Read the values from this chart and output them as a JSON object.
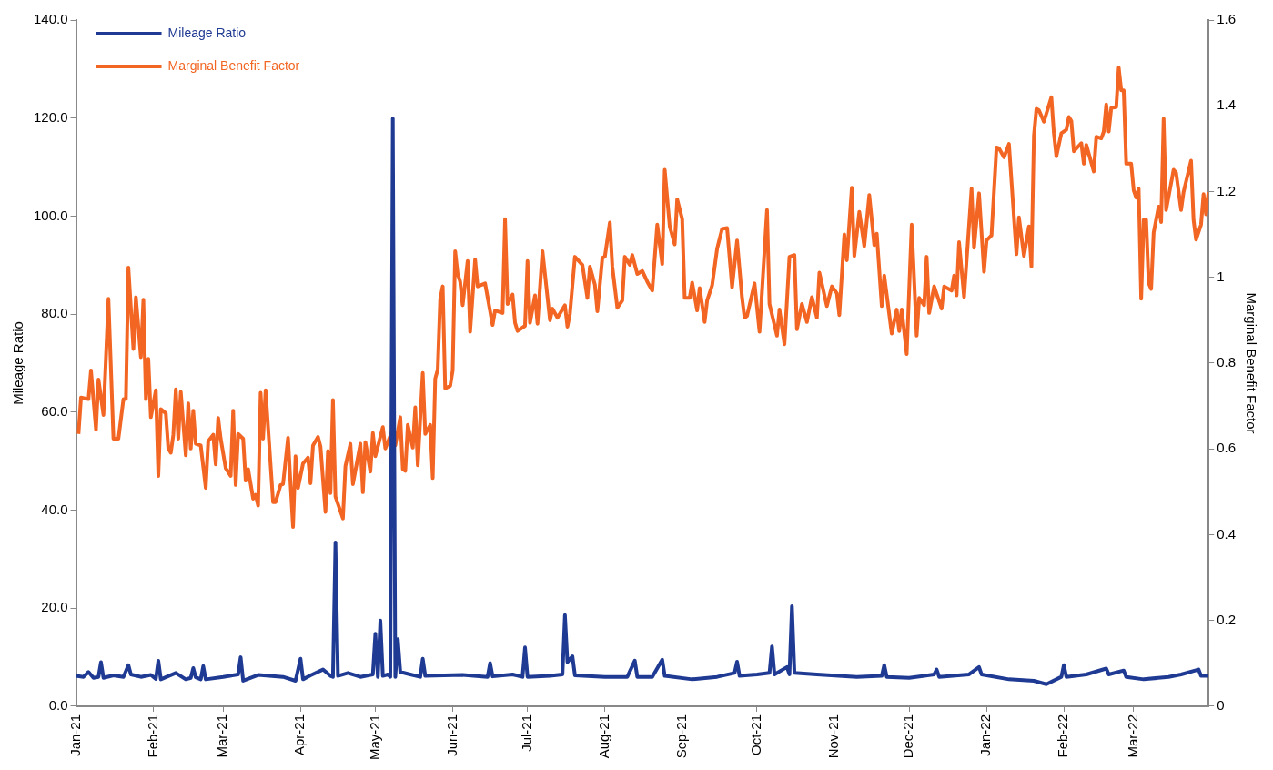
{
  "chart_data": {
    "type": "line",
    "ylabel": "Mileage Ratio",
    "y2label": "Marginal Benefit Factor",
    "legend": "top left",
    "grid": false,
    "marker": "none",
    "line_style": "solid",
    "xlim": [
      "2021-01-01",
      "2022-03-31"
    ],
    "xticks": [
      {
        "value": "2021-01-01",
        "label": "Jan-21"
      },
      {
        "value": "2021-02-01",
        "label": "Feb-21"
      },
      {
        "value": "2021-03-01",
        "label": "Mar-21"
      },
      {
        "value": "2021-04-01",
        "label": "Apr-21"
      },
      {
        "value": "2021-05-01",
        "label": "May-21"
      },
      {
        "value": "2021-06-01",
        "label": "Jun-21"
      },
      {
        "value": "2021-07-01",
        "label": "Jul-21"
      },
      {
        "value": "2021-08-01",
        "label": "Aug-21"
      },
      {
        "value": "2021-09-01",
        "label": "Sep-21"
      },
      {
        "value": "2021-10-01",
        "label": "Oct-21"
      },
      {
        "value": "2021-11-01",
        "label": "Nov-21"
      },
      {
        "value": "2021-12-01",
        "label": "Dec-21"
      },
      {
        "value": "2022-01-01",
        "label": "Jan-22"
      },
      {
        "value": "2022-02-01",
        "label": "Feb-22"
      },
      {
        "value": "2022-03-01",
        "label": "Mar-22"
      }
    ],
    "ylim": [
      0,
      140
    ],
    "yticks": [
      {
        "value": 0,
        "label": "0.0"
      },
      {
        "value": 20,
        "label": "20.0"
      },
      {
        "value": 40,
        "label": "40.0"
      },
      {
        "value": 60,
        "label": "60.0"
      },
      {
        "value": 80,
        "label": "80.0"
      },
      {
        "value": 100,
        "label": "100.0"
      },
      {
        "value": 120,
        "label": "120.0"
      },
      {
        "value": 140,
        "label": "140.0"
      }
    ],
    "y2lim": [
      0,
      1.6
    ],
    "y2ticks": [
      0,
      0.2,
      0.4,
      0.6,
      0.8,
      1,
      1.2,
      1.4,
      1.6
    ],
    "series": [
      {
        "name": "Mileage Ratio",
        "color": "#1f3a93",
        "x": [
          "2021-01-01",
          "2021-01-04",
          "2021-01-06",
          "2021-01-08",
          "2021-01-10",
          "2021-01-11",
          "2021-01-12",
          "2021-01-16",
          "2021-01-20",
          "2021-01-22",
          "2021-01-23",
          "2021-01-27",
          "2021-01-31",
          "2021-02-02",
          "2021-02-03",
          "2021-02-04",
          "2021-02-10",
          "2021-02-14",
          "2021-02-16",
          "2021-02-17",
          "2021-02-18",
          "2021-02-20",
          "2021-02-21",
          "2021-02-22",
          "2021-03-01",
          "2021-03-07",
          "2021-03-08",
          "2021-03-09",
          "2021-03-15",
          "2021-03-25",
          "2021-03-30",
          "2021-04-01",
          "2021-04-02",
          "2021-04-05",
          "2021-04-10",
          "2021-04-13",
          "2021-04-14",
          "2021-04-15",
          "2021-04-16",
          "2021-04-20",
          "2021-04-25",
          "2021-04-30",
          "2021-05-01",
          "2021-05-02",
          "2021-05-03",
          "2021-05-04",
          "2021-05-06",
          "2021-05-07",
          "2021-05-08",
          "2021-05-09",
          "2021-05-10",
          "2021-05-11",
          "2021-05-15",
          "2021-05-19",
          "2021-05-20",
          "2021-05-21",
          "2021-06-05",
          "2021-06-15",
          "2021-06-16",
          "2021-06-17",
          "2021-06-25",
          "2021-06-29",
          "2021-06-30",
          "2021-07-01",
          "2021-07-10",
          "2021-07-15",
          "2021-07-16",
          "2021-07-17",
          "2021-07-19",
          "2021-07-20",
          "2021-08-01",
          "2021-08-10",
          "2021-08-13",
          "2021-08-14",
          "2021-08-20",
          "2021-08-24",
          "2021-08-25",
          "2021-09-05",
          "2021-09-15",
          "2021-09-22",
          "2021-09-23",
          "2021-09-24",
          "2021-10-01",
          "2021-10-06",
          "2021-10-07",
          "2021-10-08",
          "2021-10-13",
          "2021-10-14",
          "2021-10-15",
          "2021-10-16",
          "2021-10-25",
          "2021-11-10",
          "2021-11-20",
          "2021-11-21",
          "2021-11-22",
          "2021-12-01",
          "2021-12-11",
          "2021-12-12",
          "2021-12-13",
          "2021-12-25",
          "2021-12-29",
          "2021-12-30",
          "2022-01-10",
          "2022-01-20",
          "2022-01-25",
          "2022-01-31",
          "2022-02-01",
          "2022-02-02",
          "2022-02-10",
          "2022-02-18",
          "2022-02-19",
          "2022-02-25",
          "2022-02-26",
          "2022-03-05",
          "2022-03-15",
          "2022-03-20",
          "2022-03-27",
          "2022-03-28",
          "2022-03-31"
        ],
        "values": [
          6.2,
          6.0,
          7.0,
          5.8,
          6.0,
          9.0,
          5.8,
          6.3,
          6.0,
          8.4,
          6.5,
          6.0,
          6.4,
          5.6,
          9.3,
          5.5,
          6.8,
          5.5,
          5.8,
          7.8,
          5.9,
          5.5,
          8.2,
          5.5,
          6.0,
          6.5,
          10.0,
          5.2,
          6.4,
          6.0,
          5.2,
          9.7,
          5.5,
          6.3,
          7.5,
          6.2,
          6.0,
          33.4,
          6.2,
          6.8,
          6.0,
          6.5,
          14.8,
          6.0,
          17.5,
          6.2,
          6.5,
          6.0,
          119.9,
          6.0,
          13.7,
          7.0,
          6.5,
          6.0,
          9.7,
          6.2,
          6.4,
          6.0,
          8.8,
          6.1,
          6.5,
          6.0,
          12.0,
          6.0,
          6.2,
          6.5,
          18.6,
          9.0,
          10.2,
          6.3,
          6.0,
          6.0,
          9.3,
          6.0,
          6.0,
          9.5,
          6.2,
          5.5,
          6.0,
          6.8,
          9.1,
          6.2,
          6.5,
          6.8,
          12.2,
          6.5,
          8.0,
          6.5,
          20.4,
          6.8,
          6.5,
          6.0,
          6.2,
          8.4,
          6.0,
          5.8,
          6.5,
          7.5,
          6.0,
          6.5,
          8.0,
          6.5,
          5.5,
          5.2,
          4.5,
          6.0,
          8.4,
          6.0,
          6.5,
          7.7,
          6.5,
          7.3,
          6.0,
          5.5,
          6.0,
          6.5,
          7.5,
          6.2,
          6.2
        ]
      },
      {
        "name": "Marginal Benefit Factor",
        "color": "#f26522",
        "axis": "y2",
        "x": [
          "2021-01-02",
          "2021-01-03",
          "2021-01-06",
          "2021-01-07",
          "2021-01-09",
          "2021-01-10",
          "2021-01-12",
          "2021-01-14",
          "2021-01-16",
          "2021-01-18",
          "2021-01-20",
          "2021-01-21",
          "2021-01-22",
          "2021-01-24",
          "2021-01-25",
          "2021-01-27",
          "2021-01-28",
          "2021-01-29",
          "2021-01-30",
          "2021-01-31",
          "2021-02-02",
          "2021-02-03",
          "2021-02-04",
          "2021-02-06",
          "2021-02-07",
          "2021-02-08",
          "2021-02-09",
          "2021-02-10",
          "2021-02-11",
          "2021-02-12",
          "2021-02-14",
          "2021-02-15",
          "2021-02-16",
          "2021-02-17",
          "2021-02-18",
          "2021-02-20",
          "2021-02-22",
          "2021-02-23",
          "2021-02-25",
          "2021-02-26",
          "2021-02-27",
          "2021-02-28",
          "2021-03-02",
          "2021-03-04",
          "2021-03-05",
          "2021-03-06",
          "2021-03-07",
          "2021-03-09",
          "2021-03-10",
          "2021-03-11",
          "2021-03-13",
          "2021-03-14",
          "2021-03-15",
          "2021-03-16",
          "2021-03-17",
          "2021-03-18",
          "2021-03-21",
          "2021-03-22",
          "2021-03-24",
          "2021-03-25",
          "2021-03-27",
          "2021-03-28",
          "2021-03-29",
          "2021-03-30",
          "2021-03-31",
          "2021-04-02",
          "2021-04-04",
          "2021-04-05",
          "2021-04-06",
          "2021-04-08",
          "2021-04-09",
          "2021-04-11",
          "2021-04-12",
          "2021-04-13",
          "2021-04-14",
          "2021-04-15",
          "2021-04-18",
          "2021-04-19",
          "2021-04-21",
          "2021-04-22",
          "2021-04-25",
          "2021-04-26",
          "2021-04-27",
          "2021-04-29",
          "2021-04-30",
          "2021-05-01",
          "2021-05-04",
          "2021-05-05",
          "2021-05-08",
          "2021-05-09",
          "2021-05-11",
          "2021-05-12",
          "2021-05-13",
          "2021-05-14",
          "2021-05-16",
          "2021-05-17",
          "2021-05-18",
          "2021-05-20",
          "2021-05-21",
          "2021-05-23",
          "2021-05-24",
          "2021-05-25",
          "2021-05-26",
          "2021-05-27",
          "2021-05-28",
          "2021-05-29",
          "2021-05-31",
          "2021-06-01",
          "2021-06-02",
          "2021-06-03",
          "2021-06-04",
          "2021-06-05",
          "2021-06-07",
          "2021-06-08",
          "2021-06-10",
          "2021-06-11",
          "2021-06-14",
          "2021-06-17",
          "2021-06-18",
          "2021-06-21",
          "2021-06-22",
          "2021-06-23",
          "2021-06-25",
          "2021-06-26",
          "2021-06-27",
          "2021-06-30",
          "2021-07-01",
          "2021-07-02",
          "2021-07-04",
          "2021-07-05",
          "2021-07-07",
          "2021-07-10",
          "2021-07-11",
          "2021-07-13",
          "2021-07-16",
          "2021-07-17",
          "2021-07-18",
          "2021-07-20",
          "2021-07-23",
          "2021-07-25",
          "2021-07-26",
          "2021-07-28",
          "2021-07-29",
          "2021-07-31",
          "2021-08-01",
          "2021-08-03",
          "2021-08-04",
          "2021-08-06",
          "2021-08-08",
          "2021-08-09",
          "2021-08-11",
          "2021-08-12",
          "2021-08-14",
          "2021-08-16",
          "2021-08-18",
          "2021-08-20",
          "2021-08-22",
          "2021-08-24",
          "2021-08-25",
          "2021-08-27",
          "2021-08-29",
          "2021-08-30",
          "2021-09-01",
          "2021-09-02",
          "2021-09-04",
          "2021-09-05",
          "2021-09-07",
          "2021-09-08",
          "2021-09-10",
          "2021-09-11",
          "2021-09-13",
          "2021-09-15",
          "2021-09-17",
          "2021-09-19",
          "2021-09-21",
          "2021-09-23",
          "2021-09-25",
          "2021-09-26",
          "2021-09-27",
          "2021-09-30",
          "2021-10-02",
          "2021-10-05",
          "2021-10-06",
          "2021-10-09",
          "2021-10-10",
          "2021-10-12",
          "2021-10-14",
          "2021-10-16",
          "2021-10-17",
          "2021-10-19",
          "2021-10-21",
          "2021-10-23",
          "2021-10-25",
          "2021-10-26",
          "2021-10-29",
          "2021-10-31",
          "2021-11-02",
          "2021-11-03",
          "2021-11-05",
          "2021-11-06",
          "2021-11-08",
          "2021-11-09",
          "2021-11-11",
          "2021-11-13",
          "2021-11-15",
          "2021-11-17",
          "2021-11-18",
          "2021-11-20",
          "2021-11-21",
          "2021-11-24",
          "2021-11-26",
          "2021-11-27",
          "2021-11-28",
          "2021-11-30",
          "2021-12-02",
          "2021-12-04",
          "2021-12-05",
          "2021-12-07",
          "2021-12-08",
          "2021-12-09",
          "2021-12-11",
          "2021-12-14",
          "2021-12-15",
          "2021-12-18",
          "2021-12-19",
          "2021-12-20",
          "2021-12-21",
          "2021-12-23",
          "2021-12-26",
          "2021-12-27",
          "2021-12-29",
          "2021-12-31",
          "2022-01-01",
          "2022-01-03",
          "2022-01-05",
          "2022-01-06",
          "2022-01-08",
          "2022-01-10",
          "2022-01-13",
          "2022-01-14",
          "2022-01-16",
          "2022-01-18",
          "2022-01-19",
          "2022-01-20",
          "2022-01-21",
          "2022-01-22",
          "2022-01-24",
          "2022-01-27",
          "2022-01-28",
          "2022-01-29",
          "2022-01-31",
          "2022-02-02",
          "2022-02-03",
          "2022-02-04",
          "2022-02-05",
          "2022-02-08",
          "2022-02-09",
          "2022-02-10",
          "2022-02-13",
          "2022-02-14",
          "2022-02-16",
          "2022-02-17",
          "2022-02-18",
          "2022-02-19",
          "2022-02-20",
          "2022-02-22",
          "2022-02-23",
          "2022-02-24",
          "2022-02-25",
          "2022-02-26",
          "2022-02-28",
          "2022-03-01",
          "2022-03-02",
          "2022-03-03",
          "2022-03-04",
          "2022-03-05",
          "2022-03-06",
          "2022-03-07",
          "2022-03-08",
          "2022-03-09",
          "2022-03-11",
          "2022-03-12",
          "2022-03-13",
          "2022-03-14",
          "2022-03-17",
          "2022-03-18",
          "2022-03-20",
          "2022-03-21",
          "2022-03-24",
          "2022-03-25",
          "2022-03-26",
          "2022-03-28",
          "2022-03-29",
          "2022-03-30",
          "2022-03-31"
        ],
        "values": [
          0.635,
          0.72,
          0.716,
          0.783,
          0.645,
          0.762,
          0.679,
          0.95,
          0.624,
          0.624,
          0.716,
          0.716,
          1.023,
          0.833,
          0.954,
          0.814,
          0.948,
          0.716,
          0.81,
          0.674,
          0.737,
          0.537,
          0.693,
          0.683,
          0.601,
          0.591,
          0.633,
          0.739,
          0.624,
          0.733,
          0.585,
          0.706,
          0.601,
          0.689,
          0.612,
          0.608,
          0.509,
          0.618,
          0.633,
          0.564,
          0.672,
          0.624,
          0.555,
          0.537,
          0.689,
          0.516,
          0.635,
          0.624,
          0.526,
          0.553,
          0.484,
          0.493,
          0.468,
          0.731,
          0.624,
          0.737,
          0.476,
          0.476,
          0.516,
          0.518,
          0.626,
          0.518,
          0.418,
          0.583,
          0.509,
          0.566,
          0.58,
          0.52,
          0.608,
          0.628,
          0.606,
          0.453,
          0.595,
          0.497,
          0.714,
          0.489,
          0.438,
          0.56,
          0.612,
          0.518,
          0.612,
          0.499,
          0.616,
          0.547,
          0.637,
          0.583,
          0.651,
          0.601,
          0.645,
          0.608,
          0.674,
          0.553,
          0.549,
          0.656,
          0.603,
          0.697,
          0.562,
          0.777,
          0.635,
          0.656,
          0.532,
          0.764,
          0.785,
          0.95,
          0.979,
          0.741,
          0.747,
          0.783,
          1.061,
          1.008,
          0.99,
          0.935,
          1.038,
          0.873,
          1.042,
          0.979,
          0.986,
          0.889,
          0.923,
          0.917,
          1.136,
          0.938,
          0.96,
          0.894,
          0.875,
          0.887,
          1.038,
          0.894,
          0.958,
          0.892,
          1.061,
          0.9,
          0.927,
          0.906,
          0.935,
          0.885,
          0.915,
          1.048,
          1.029,
          0.952,
          1.025,
          0.983,
          0.921,
          1.046,
          1.048,
          1.128,
          1.025,
          0.929,
          0.946,
          1.048,
          1.029,
          1.052,
          1.008,
          1.015,
          0.99,
          0.969,
          1.123,
          1.031,
          1.251,
          1.119,
          1.077,
          1.182,
          1.136,
          0.952,
          0.952,
          0.988,
          0.923,
          0.975,
          0.896,
          0.946,
          0.981,
          1.067,
          1.113,
          1.115,
          0.977,
          1.086,
          0.952,
          0.906,
          0.91,
          0.986,
          0.873,
          1.157,
          0.938,
          0.864,
          0.925,
          0.844,
          1.048,
          1.052,
          0.879,
          0.938,
          0.896,
          0.954,
          0.906,
          1.011,
          0.933,
          0.979,
          0.963,
          0.912,
          1.1,
          1.04,
          1.209,
          1.05,
          1.153,
          1.073,
          1.192,
          1.075,
          1.102,
          0.933,
          1.004,
          0.869,
          0.925,
          0.875,
          0.925,
          0.821,
          1.123,
          0.864,
          0.952,
          0.935,
          1.048,
          0.917,
          0.979,
          0.927,
          0.979,
          0.969,
          1.004,
          0.958,
          1.082,
          0.954,
          1.207,
          1.069,
          1.196,
          1.013,
          1.086,
          1.098,
          1.303,
          1.301,
          1.28,
          1.311,
          1.054,
          1.14,
          1.05,
          1.119,
          1.025,
          1.33,
          1.393,
          1.39,
          1.363,
          1.42,
          1.336,
          1.282,
          1.336,
          1.344,
          1.374,
          1.365,
          1.294,
          1.313,
          1.265,
          1.309,
          1.247,
          1.328,
          1.324,
          1.34,
          1.403,
          1.34,
          1.395,
          1.397,
          1.489,
          1.436,
          1.436,
          1.265,
          1.265,
          1.203,
          1.186,
          1.207,
          0.95,
          1.134,
          1.134,
          0.987,
          0.973,
          1.104,
          1.165,
          1.129,
          1.37,
          1.157,
          1.251,
          1.244,
          1.157,
          1.199,
          1.272,
          1.134,
          1.088,
          1.123,
          1.194,
          1.147,
          1.199
        ]
      }
    ]
  }
}
